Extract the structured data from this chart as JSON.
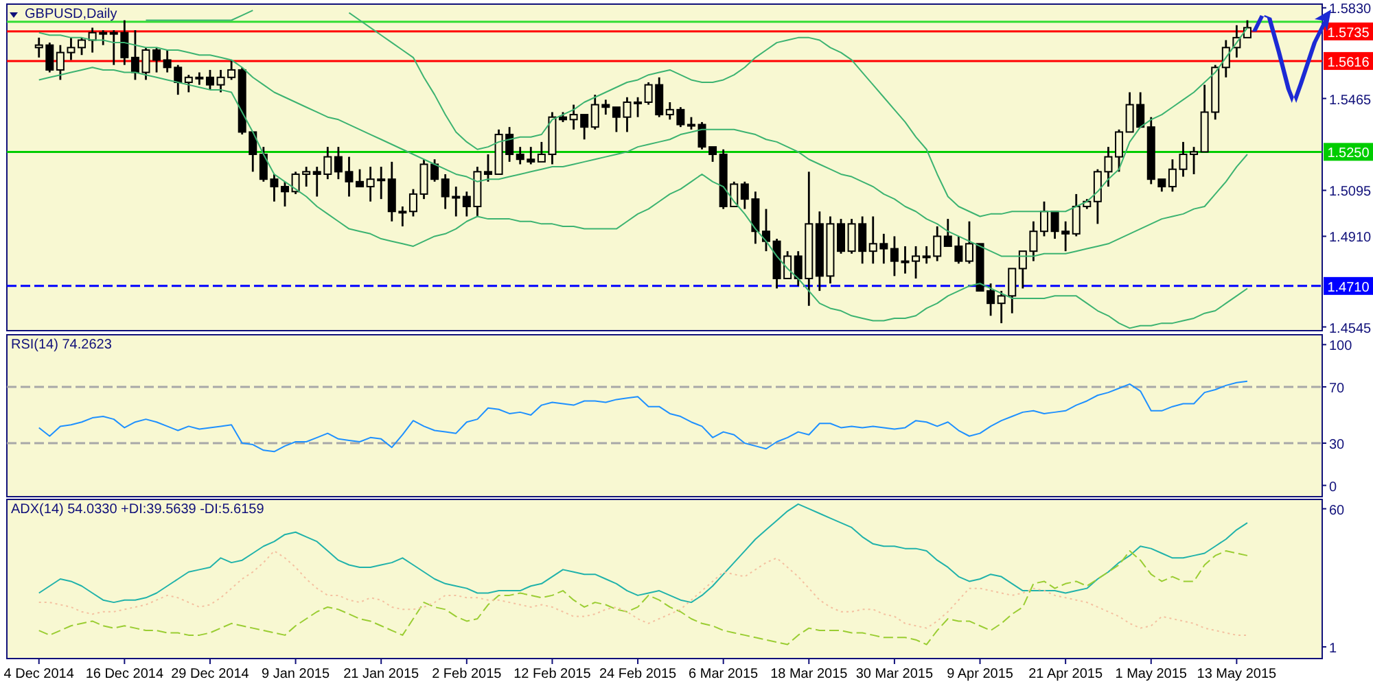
{
  "chart_data": [
    {
      "type": "candlestick",
      "title": "GBPUSD,Daily",
      "color": "#000000",
      "tick_labels": "y",
      "categories": [
        null,
        null,
        null,
        null,
        null,
        null,
        null,
        null,
        null,
        null,
        null,
        null,
        null,
        null,
        null,
        null,
        null,
        null,
        null,
        null,
        null,
        null,
        null,
        null,
        null,
        null,
        null,
        null,
        null,
        null,
        null,
        null,
        null,
        null,
        null,
        null,
        null,
        null,
        null,
        null,
        null,
        null,
        null,
        null,
        null,
        null,
        null,
        null,
        null,
        null,
        null,
        null,
        null,
        null,
        null,
        null,
        null,
        null,
        null,
        null,
        null,
        null,
        null,
        null,
        null,
        null,
        null,
        null,
        null,
        null,
        null,
        null,
        null,
        null,
        null,
        null,
        null,
        null,
        null,
        null,
        null,
        null,
        null,
        null,
        null,
        null,
        null,
        null,
        null,
        null,
        null,
        null,
        null,
        null,
        null,
        null,
        null,
        null,
        null,
        null,
        null,
        null,
        null,
        null,
        null,
        null,
        null,
        null,
        null,
        null,
        null,
        null,
        null,
        null
      ],
      "ylim": [
        1.453,
        1.5845
      ],
      "yticks": [
        {
          "value": 1.583,
          "label": "1.5830"
        },
        1.5465,
        1.5095,
        {
          "value": 1.491,
          "label": "1.4910"
        },
        1.4545
      ],
      "ohlc": [
        [
          1.567,
          1.571,
          1.563,
          1.568
        ],
        [
          1.568,
          1.569,
          1.557,
          1.558
        ],
        [
          1.558,
          1.568,
          1.554,
          1.565
        ],
        [
          1.565,
          1.571,
          1.562,
          1.567
        ],
        [
          1.567,
          1.571,
          1.564,
          1.57
        ],
        [
          1.57,
          1.575,
          1.565,
          1.573
        ],
        [
          1.573,
          1.574,
          1.568,
          1.573
        ],
        [
          1.573,
          1.574,
          1.56,
          1.573
        ],
        [
          1.573,
          1.578,
          1.56,
          1.563
        ],
        [
          1.563,
          1.574,
          1.554,
          1.557
        ],
        [
          1.557,
          1.567,
          1.554,
          1.566
        ],
        [
          1.566,
          1.567,
          1.557,
          1.562
        ],
        [
          1.562,
          1.566,
          1.557,
          1.559
        ],
        [
          1.559,
          1.56,
          1.548,
          1.553
        ],
        [
          1.553,
          1.556,
          1.549,
          1.555
        ],
        [
          1.555,
          1.557,
          1.552,
          1.555
        ],
        [
          1.555,
          1.558,
          1.55,
          1.552
        ],
        [
          1.552,
          1.558,
          1.549,
          1.555
        ],
        [
          1.555,
          1.562,
          1.554,
          1.558
        ],
        [
          1.558,
          1.559,
          1.532,
          1.533
        ],
        [
          1.533,
          1.533,
          1.517,
          1.524
        ],
        [
          1.524,
          1.527,
          1.513,
          1.514
        ],
        [
          1.514,
          1.516,
          1.505,
          1.511
        ],
        [
          1.511,
          1.513,
          1.503,
          1.509
        ],
        [
          1.509,
          1.517,
          1.508,
          1.516
        ],
        [
          1.516,
          1.519,
          1.511,
          1.517
        ],
        [
          1.517,
          1.519,
          1.507,
          1.516
        ],
        [
          1.516,
          1.527,
          1.514,
          1.523
        ],
        [
          1.523,
          1.527,
          1.514,
          1.517
        ],
        [
          1.517,
          1.523,
          1.507,
          1.513
        ],
        [
          1.513,
          1.518,
          1.511,
          1.511
        ],
        [
          1.511,
          1.519,
          1.505,
          1.514
        ],
        [
          1.514,
          1.519,
          1.506,
          1.514
        ],
        [
          1.514,
          1.521,
          1.497,
          1.501
        ],
        [
          1.501,
          1.503,
          1.495,
          1.501
        ],
        [
          1.501,
          1.51,
          1.499,
          1.508
        ],
        [
          1.508,
          1.522,
          1.506,
          1.52
        ],
        [
          1.52,
          1.522,
          1.513,
          1.514
        ],
        [
          1.514,
          1.516,
          1.502,
          1.507
        ],
        [
          1.507,
          1.511,
          1.499,
          1.507
        ],
        [
          1.507,
          1.509,
          1.499,
          1.503
        ],
        [
          1.503,
          1.519,
          1.499,
          1.517
        ],
        [
          1.517,
          1.524,
          1.513,
          1.516
        ],
        [
          1.516,
          1.534,
          1.516,
          1.532
        ],
        [
          1.532,
          1.535,
          1.521,
          1.524
        ],
        [
          1.524,
          1.527,
          1.52,
          1.522
        ],
        [
          1.522,
          1.527,
          1.52,
          1.521
        ],
        [
          1.521,
          1.529,
          1.521,
          1.524
        ],
        [
          1.524,
          1.541,
          1.52,
          1.539
        ],
        [
          1.539,
          1.541,
          1.537,
          1.538
        ],
        [
          1.538,
          1.544,
          1.534,
          1.54
        ],
        [
          1.54,
          1.54,
          1.53,
          1.535
        ],
        [
          1.535,
          1.548,
          1.534,
          1.544
        ],
        [
          1.544,
          1.546,
          1.54,
          1.543
        ],
        [
          1.543,
          1.543,
          1.533,
          1.539
        ],
        [
          1.539,
          1.547,
          1.533,
          1.545
        ],
        [
          1.545,
          1.547,
          1.539,
          1.545
        ],
        [
          1.545,
          1.553,
          1.544,
          1.552
        ],
        [
          1.552,
          1.555,
          1.539,
          1.54
        ],
        [
          1.54,
          1.545,
          1.538,
          1.542
        ],
        [
          1.542,
          1.543,
          1.535,
          1.536
        ],
        [
          1.536,
          1.539,
          1.534,
          1.536
        ],
        [
          1.536,
          1.537,
          1.526,
          1.527
        ],
        [
          1.527,
          1.527,
          1.521,
          1.524
        ],
        [
          1.524,
          1.526,
          1.502,
          1.503
        ],
        [
          1.503,
          1.513,
          1.503,
          1.512
        ],
        [
          1.512,
          1.513,
          1.502,
          1.506
        ],
        [
          1.506,
          1.509,
          1.488,
          1.493
        ],
        [
          1.493,
          1.502,
          1.485,
          1.489
        ],
        [
          1.489,
          1.49,
          1.47,
          1.474
        ],
        [
          1.474,
          1.485,
          1.474,
          1.483
        ],
        [
          1.483,
          1.485,
          1.471,
          1.474
        ],
        [
          1.474,
          1.517,
          1.463,
          1.496
        ],
        [
          1.496,
          1.501,
          1.469,
          1.475
        ],
        [
          1.475,
          1.499,
          1.472,
          1.496
        ],
        [
          1.496,
          1.498,
          1.484,
          1.485
        ],
        [
          1.485,
          1.498,
          1.484,
          1.496
        ],
        [
          1.496,
          1.499,
          1.48,
          1.485
        ],
        [
          1.485,
          1.499,
          1.48,
          1.488
        ],
        [
          1.488,
          1.492,
          1.48,
          1.486
        ],
        [
          1.486,
          1.491,
          1.475,
          1.481
        ],
        [
          1.481,
          1.487,
          1.476,
          1.481
        ],
        [
          1.481,
          1.487,
          1.474,
          1.483
        ],
        [
          1.483,
          1.487,
          1.48,
          1.483
        ],
        [
          1.483,
          1.495,
          1.481,
          1.491
        ],
        [
          1.491,
          1.498,
          1.487,
          1.487
        ],
        [
          1.487,
          1.491,
          1.48,
          1.481
        ],
        [
          1.481,
          1.497,
          1.48,
          1.488
        ],
        [
          1.488,
          1.488,
          1.469,
          1.469
        ],
        [
          1.469,
          1.472,
          1.459,
          1.464
        ],
        [
          1.464,
          1.469,
          1.456,
          1.467
        ],
        [
          1.467,
          1.478,
          1.46,
          1.478
        ],
        [
          1.478,
          1.485,
          1.47,
          1.485
        ],
        [
          1.485,
          1.497,
          1.481,
          1.493
        ],
        [
          1.493,
          1.505,
          1.491,
          1.501
        ],
        [
          1.501,
          1.501,
          1.49,
          1.493
        ],
        [
          1.493,
          1.497,
          1.485,
          1.492
        ],
        [
          1.492,
          1.508,
          1.491,
          1.503
        ],
        [
          1.503,
          1.506,
          1.502,
          1.505
        ],
        [
          1.505,
          1.518,
          1.496,
          1.517
        ],
        [
          1.517,
          1.527,
          1.511,
          1.523
        ],
        [
          1.523,
          1.534,
          1.517,
          1.533
        ],
        [
          1.533,
          1.549,
          1.533,
          1.544
        ],
        [
          1.544,
          1.549,
          1.535,
          1.535
        ],
        [
          1.535,
          1.539,
          1.512,
          1.514
        ],
        [
          1.514,
          1.514,
          1.509,
          1.511
        ],
        [
          1.511,
          1.522,
          1.509,
          1.518
        ],
        [
          1.518,
          1.529,
          1.515,
          1.524
        ],
        [
          1.524,
          1.527,
          1.516,
          1.525
        ],
        [
          1.525,
          1.552,
          1.525,
          1.541
        ],
        [
          1.541,
          1.56,
          1.538,
          1.559
        ],
        [
          1.559,
          1.57,
          1.555,
          1.567
        ],
        [
          1.567,
          1.576,
          1.563,
          1.571
        ],
        [
          1.571,
          1.578,
          1.571,
          1.575
        ]
      ],
      "series": [
        {
          "type": "line",
          "color": "#3cb371",
          "values": [
            null,
            null,
            null,
            null,
            null,
            null,
            null,
            null,
            null,
            null,
            1.578,
            1.578,
            1.578,
            1.578,
            1.578,
            1.578,
            1.578,
            1.578,
            1.578,
            1.58,
            1.582,
            null,
            null,
            null,
            null,
            null,
            null,
            null,
            null,
            1.581,
            1.578,
            1.575,
            1.572,
            1.569,
            1.566,
            1.563,
            1.555,
            1.548,
            1.54,
            1.533,
            1.529,
            1.526,
            1.527,
            1.529,
            1.53,
            1.531,
            1.531,
            1.532,
            1.538,
            1.54,
            1.542,
            1.545,
            1.547,
            1.549,
            1.551,
            1.553,
            1.554,
            1.556,
            1.557,
            1.558,
            1.556,
            1.554,
            1.553,
            1.553,
            1.554,
            1.556,
            1.559,
            1.563,
            1.566,
            1.569,
            1.57,
            1.571,
            1.571,
            1.57,
            1.567,
            1.565,
            1.562,
            1.557,
            1.552,
            1.547,
            1.542,
            1.537,
            1.531,
            1.526,
            1.516,
            1.507,
            1.503,
            1.501,
            1.499,
            1.5,
            1.5,
            1.501,
            1.501,
            1.501,
            1.501,
            1.501,
            1.501,
            1.503,
            1.505,
            1.509,
            1.514,
            1.518,
            1.529,
            1.535,
            1.538,
            1.54,
            1.543,
            1.546,
            1.549,
            1.553,
            1.557,
            1.563,
            1.569,
            1.575
          ]
        },
        {
          "type": "line",
          "color": "#3cb371",
          "values": [
            1.573,
            1.572,
            1.572,
            1.571,
            1.571,
            1.57,
            1.57,
            1.569,
            1.569,
            1.568,
            1.567,
            1.567,
            1.566,
            1.566,
            1.565,
            1.564,
            1.564,
            1.563,
            1.562,
            1.559,
            1.555,
            1.552,
            1.549,
            1.547,
            1.545,
            1.543,
            1.541,
            1.539,
            1.538,
            1.536,
            1.534,
            1.532,
            1.53,
            1.528,
            1.526,
            1.524,
            1.522,
            1.52,
            1.518,
            1.516,
            1.515,
            1.513,
            1.514,
            1.514,
            1.515,
            1.516,
            1.517,
            1.518,
            1.519,
            1.519,
            1.52,
            1.521,
            1.522,
            1.523,
            1.524,
            1.525,
            1.527,
            1.528,
            1.529,
            1.53,
            1.532,
            1.533,
            1.534,
            1.534,
            1.534,
            1.534,
            1.533,
            1.532,
            1.53,
            1.529,
            1.527,
            1.525,
            1.522,
            1.52,
            1.518,
            1.516,
            1.515,
            1.513,
            1.511,
            1.508,
            1.506,
            1.503,
            1.501,
            1.498,
            1.496,
            1.493,
            1.491,
            1.489,
            1.487,
            1.485,
            1.483,
            1.483,
            1.483,
            1.483,
            1.484,
            1.484,
            1.484,
            1.485,
            1.486,
            1.487,
            1.488,
            1.49,
            1.492,
            1.494,
            1.496,
            1.498,
            1.499,
            1.5,
            1.502,
            1.503,
            1.508,
            1.513,
            1.519,
            1.524
          ]
        },
        {
          "type": "line",
          "color": "#3cb371",
          "values": [
            1.554,
            1.555,
            1.556,
            1.557,
            1.558,
            1.559,
            1.558,
            1.558,
            1.557,
            1.557,
            1.556,
            1.555,
            1.554,
            1.553,
            1.552,
            1.551,
            1.55,
            1.55,
            1.549,
            1.541,
            1.533,
            1.524,
            1.516,
            1.513,
            1.51,
            1.507,
            1.503,
            1.5,
            1.497,
            1.494,
            1.493,
            1.492,
            1.49,
            1.489,
            1.488,
            1.487,
            1.489,
            1.491,
            1.492,
            1.494,
            1.497,
            1.499,
            1.498,
            1.498,
            1.498,
            1.497,
            1.497,
            1.496,
            1.496,
            1.495,
            1.495,
            1.494,
            1.494,
            1.494,
            1.494,
            1.497,
            1.5,
            1.502,
            1.505,
            1.508,
            1.51,
            1.513,
            1.516,
            1.513,
            1.511,
            1.505,
            1.5,
            1.494,
            1.489,
            1.483,
            1.478,
            1.474,
            1.469,
            1.464,
            1.462,
            1.461,
            1.459,
            1.458,
            1.457,
            1.457,
            1.458,
            1.458,
            1.459,
            1.462,
            1.464,
            1.467,
            1.469,
            1.471,
            1.472,
            1.47,
            1.468,
            1.466,
            1.466,
            1.466,
            1.466,
            1.467,
            1.467,
            1.467,
            1.464,
            1.461,
            1.459,
            1.456,
            1.454,
            1.455,
            1.455,
            1.456,
            1.456,
            1.457,
            1.458,
            1.46,
            1.461,
            1.464,
            1.467,
            1.47
          ]
        }
      ],
      "ref_lines": [
        {
          "axis": "y",
          "value": 1.5774,
          "color": "#33dd33"
        },
        {
          "axis": "y",
          "value": 1.5735,
          "label": "1.5735",
          "color": "#ff0000"
        },
        {
          "axis": "y",
          "value": 1.5616,
          "label": "1.5616",
          "color": "#ff0000"
        },
        {
          "axis": "y",
          "value": 1.525,
          "label": "1.5250",
          "color": "#00cc00"
        },
        {
          "axis": "y",
          "value": 1.471,
          "label": "1.4710",
          "color": "#0000ff",
          "line_style": "dashed"
        }
      ]
    },
    {
      "type": "line",
      "title": "RSI(14) 74.2623",
      "tick_labels": "y",
      "categories": [
        null,
        null,
        null,
        null,
        null,
        null,
        null,
        null,
        null,
        null,
        null,
        null,
        null,
        null,
        null,
        null,
        null,
        null,
        null,
        null,
        null,
        null,
        null,
        null,
        null,
        null,
        null,
        null,
        null,
        null,
        null,
        null,
        null,
        null,
        null,
        null,
        null,
        null,
        null,
        null,
        null,
        null,
        null,
        null,
        null,
        null,
        null,
        null,
        null,
        null,
        null,
        null,
        null,
        null,
        null,
        null,
        null,
        null,
        null,
        null,
        null,
        null,
        null,
        null,
        null,
        null,
        null,
        null,
        null,
        null,
        null,
        null,
        null,
        null,
        null,
        null,
        null,
        null,
        null,
        null,
        null,
        null,
        null,
        null,
        null,
        null,
        null,
        null,
        null,
        null,
        null,
        null,
        null,
        null,
        null,
        null,
        null,
        null,
        null,
        null,
        null,
        null,
        null,
        null,
        null,
        null,
        null,
        null,
        null,
        null,
        null,
        null,
        null,
        null
      ],
      "ylim": [
        -8,
        107
      ],
      "yticks": [
        0,
        30,
        70,
        100
      ],
      "series": [
        {
          "color": "#1e90ff",
          "values": [
            41,
            35,
            42,
            43,
            45,
            48,
            49,
            47,
            41,
            45,
            47,
            45,
            42,
            39,
            42,
            40,
            41,
            42,
            43,
            30,
            29,
            25,
            24,
            28,
            31,
            31,
            34,
            37,
            33,
            32,
            31,
            34,
            33,
            27,
            36,
            46,
            42,
            39,
            38,
            37,
            45,
            47,
            55,
            54,
            51,
            52,
            50,
            57,
            59,
            58,
            57,
            60,
            60,
            59,
            61,
            62,
            63,
            56,
            56,
            51,
            49,
            45,
            42,
            34,
            38,
            36,
            30,
            28,
            26,
            31,
            34,
            38,
            36,
            44,
            44,
            41,
            42,
            41,
            42,
            41,
            40,
            41,
            46,
            45,
            42,
            45,
            39,
            35,
            37,
            42,
            46,
            49,
            52,
            53,
            51,
            52,
            53,
            57,
            60,
            64,
            66,
            69,
            72,
            67,
            53,
            53,
            56,
            58,
            58,
            66,
            68,
            71,
            73,
            74
          ]
        }
      ],
      "ref_lines": [
        {
          "axis": "y",
          "value": 70,
          "color": "#a8a8a8",
          "line_style": "dashed"
        },
        {
          "axis": "y",
          "value": 30,
          "color": "#a8a8a8",
          "line_style": "dashed"
        }
      ]
    },
    {
      "type": "line",
      "title": "ADX(14) 54.0330 +DI:39.5639 -DI:5.6159",
      "categories": [
        "4 Dec 2014",
        null,
        null,
        null,
        null,
        null,
        null,
        null,
        "16 Dec 2014",
        null,
        null,
        null,
        null,
        null,
        null,
        null,
        "29 Dec 2014",
        null,
        null,
        null,
        null,
        null,
        null,
        null,
        "9 Jan 2015",
        null,
        null,
        null,
        null,
        null,
        null,
        null,
        "21 Jan 2015",
        null,
        null,
        null,
        null,
        null,
        null,
        null,
        "2 Feb 2015",
        null,
        null,
        null,
        null,
        null,
        null,
        null,
        "12 Feb 2015",
        null,
        null,
        null,
        null,
        null,
        null,
        null,
        "24 Feb 2015",
        null,
        null,
        null,
        null,
        null,
        null,
        null,
        "6 Mar 2015",
        null,
        null,
        null,
        null,
        null,
        null,
        null,
        "18 Mar 2015",
        null,
        null,
        null,
        null,
        null,
        null,
        null,
        "30 Mar 2015",
        null,
        null,
        null,
        null,
        null,
        null,
        null,
        "9 Apr 2015",
        null,
        null,
        null,
        null,
        null,
        null,
        null,
        "21 Apr 2015",
        null,
        null,
        null,
        null,
        null,
        null,
        null,
        "1 May 2015",
        null,
        null,
        null,
        null,
        null,
        null,
        null,
        "13 May 2015",
        null
      ],
      "ylim": [
        -4,
        64
      ],
      "yticks": [
        1,
        60
      ],
      "series": [
        {
          "color": "#20b2aa",
          "line_style": "solid",
          "values": [
            24,
            27,
            30,
            29,
            27,
            24,
            21,
            20,
            21,
            21,
            22,
            24,
            27,
            30,
            33,
            34,
            35,
            39,
            37,
            38,
            41,
            44,
            46,
            49,
            50,
            48,
            46,
            42,
            38,
            36,
            35,
            35,
            36,
            37,
            39,
            36,
            33,
            30,
            28,
            27,
            26,
            24,
            24,
            25,
            25,
            25,
            27,
            28,
            31,
            34,
            33,
            32,
            32,
            30,
            28,
            25,
            23,
            24,
            25,
            23,
            21,
            20,
            23,
            27,
            32,
            37,
            42,
            47,
            51,
            55,
            59,
            62,
            60,
            58,
            56,
            54,
            52,
            48,
            45,
            44,
            44,
            43,
            43,
            42,
            38,
            35,
            31,
            29,
            30,
            32,
            31,
            28,
            25,
            25,
            25,
            25,
            24,
            25,
            26,
            30,
            33,
            37,
            40,
            44,
            43,
            41,
            39,
            39,
            40,
            41,
            44,
            47,
            51,
            54
          ]
        },
        {
          "color": "#9acd32",
          "line_style": "dashed",
          "values": [
            8,
            6,
            8,
            10,
            11,
            12,
            10,
            9,
            10,
            9,
            8,
            8,
            7,
            7,
            6,
            6,
            7,
            9,
            11,
            10,
            9,
            8,
            7,
            6,
            10,
            13,
            16,
            18,
            17,
            15,
            13,
            12,
            10,
            8,
            6,
            13,
            20,
            18,
            17,
            14,
            12,
            13,
            19,
            23,
            23,
            24,
            23,
            22,
            23,
            25,
            21,
            18,
            20,
            19,
            17,
            16,
            18,
            23,
            21,
            18,
            16,
            13,
            11,
            10,
            8,
            7,
            6,
            5,
            4,
            3,
            2,
            6,
            9,
            8,
            8,
            8,
            7,
            7,
            6,
            5,
            5,
            5,
            4,
            2,
            8,
            13,
            12,
            12,
            10,
            8,
            11,
            15,
            18,
            28,
            29,
            26,
            28,
            29,
            27,
            30,
            33,
            36,
            42,
            38,
            32,
            29,
            31,
            29,
            29,
            36,
            40,
            42,
            41,
            40
          ]
        },
        {
          "color": "#f4c0a0",
          "line_style": "dotted",
          "values": [
            20,
            20,
            19,
            18,
            16,
            15,
            16,
            16,
            17,
            18,
            19,
            21,
            23,
            22,
            20,
            18,
            19,
            22,
            26,
            30,
            33,
            37,
            42,
            39,
            35,
            30,
            26,
            23,
            23,
            21,
            20,
            22,
            21,
            18,
            17,
            17,
            18,
            20,
            23,
            23,
            22,
            22,
            21,
            21,
            20,
            19,
            18,
            19,
            18,
            16,
            14,
            14,
            15,
            17,
            18,
            16,
            13,
            11,
            13,
            15,
            17,
            21,
            25,
            29,
            33,
            32,
            31,
            34,
            37,
            39,
            35,
            31,
            26,
            21,
            18,
            16,
            16,
            17,
            17,
            15,
            14,
            11,
            10,
            9,
            12,
            16,
            21,
            26,
            26,
            25,
            24,
            23,
            24,
            26,
            25,
            23,
            22,
            21,
            20,
            18,
            16,
            14,
            11,
            9,
            10,
            14,
            13,
            12,
            11,
            9,
            8,
            7,
            6,
            6
          ]
        }
      ]
    }
  ]
}
